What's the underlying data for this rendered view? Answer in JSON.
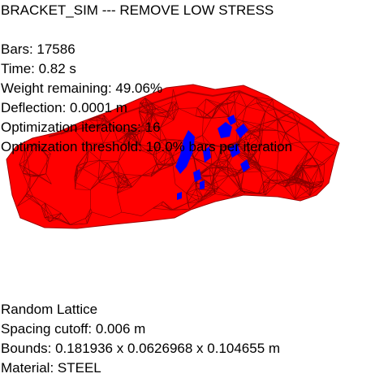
{
  "sim": {
    "title": "BRACKET_SIM --- REMOVE LOW STRESS",
    "bars": "Bars: 17586",
    "time": "Time: 0.82 s",
    "weight_remaining": "Weight remaining: 49.06%",
    "deflection": "Deflection: 0.0001 m",
    "optimization_iterations": "Optimization iterations: 16",
    "optimization_threshold": "Optimization threshold: 10.0% bars per iteration"
  },
  "lattice_info": {
    "type": "Random Lattice",
    "spacing_cutoff": "Spacing cutoff: 0.006 m",
    "bounds": "Bounds: 0.181936 x 0.0626968 x 0.104655 m",
    "material": "Material: STEEL"
  },
  "render": {
    "low_stress_color": "#ff0000",
    "high_stress_color": "#0000ff",
    "edge_color": "#8a0000",
    "background": "#ffffff"
  }
}
